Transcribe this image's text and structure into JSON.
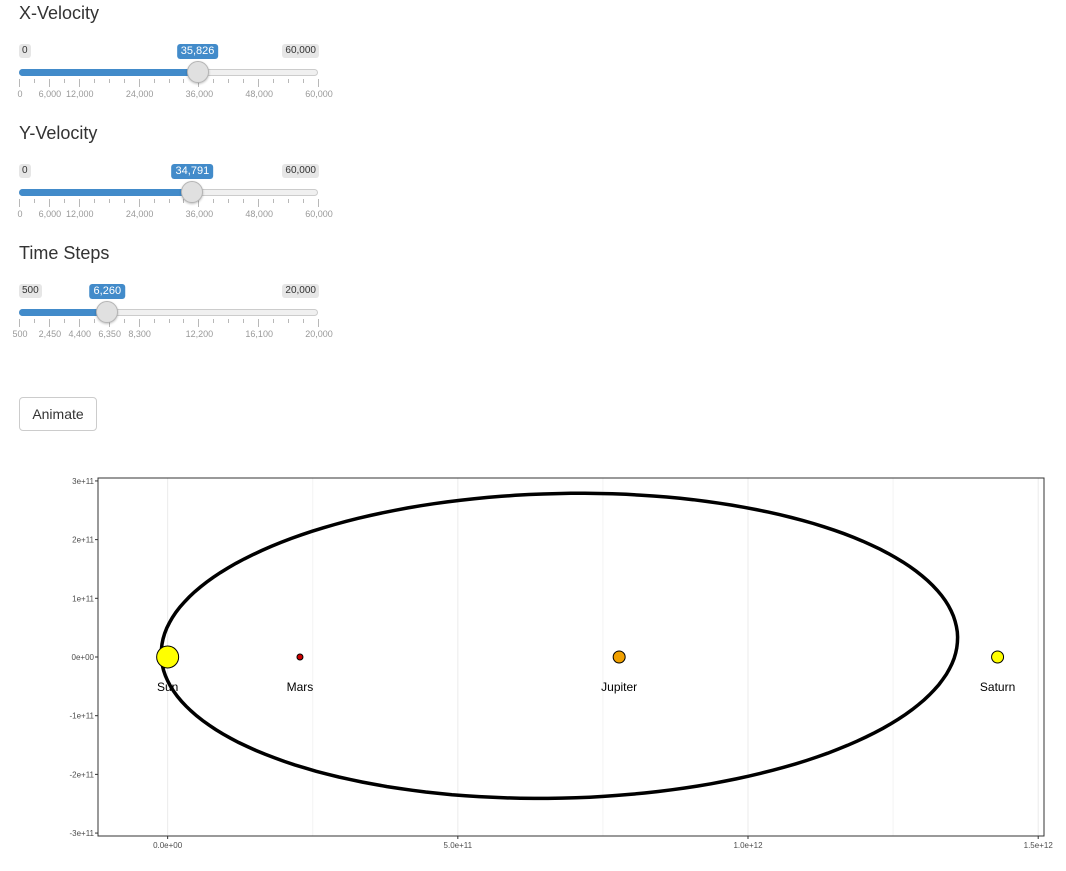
{
  "sliders": [
    {
      "id": "xvel",
      "label": "X-Velocity",
      "min": 0,
      "max": 60000,
      "value": 35826,
      "min_label": "0",
      "max_label": "60,000",
      "value_label": "35,826",
      "major_ticks": [
        0,
        6000,
        12000,
        24000,
        36000,
        48000,
        60000
      ],
      "tick_labels": [
        "0",
        "6,000",
        "12,000",
        "24,000",
        "36,000",
        "48,000",
        "60,000"
      ],
      "minor_step": 3000
    },
    {
      "id": "yvel",
      "label": "Y-Velocity",
      "min": 0,
      "max": 60000,
      "value": 34791,
      "min_label": "0",
      "max_label": "60,000",
      "value_label": "34,791",
      "major_ticks": [
        0,
        6000,
        12000,
        24000,
        36000,
        48000,
        60000
      ],
      "tick_labels": [
        "0",
        "6,000",
        "12,000",
        "24,000",
        "36,000",
        "48,000",
        "60,000"
      ],
      "minor_step": 3000
    },
    {
      "id": "tsteps",
      "label": "Time Steps",
      "min": 500,
      "max": 20000,
      "value": 6260,
      "min_label": "500",
      "max_label": "20,000",
      "value_label": "6,260",
      "major_ticks": [
        500,
        2450,
        4400,
        6350,
        8300,
        12200,
        16100,
        20000
      ],
      "tick_labels": [
        "500",
        "2,450",
        "4,400",
        "6,350",
        "8,300",
        "12,200",
        "16,100",
        "20,000"
      ],
      "minor_step": 975
    }
  ],
  "animate_button": {
    "label": "Animate"
  },
  "chart_data": {
    "type": "scatter",
    "xlim": [
      -120000000000.0,
      1510000000000.0
    ],
    "ylim": [
      -305000000000.0,
      305000000000.0
    ],
    "x_ticks": [
      0,
      500000000000.0,
      1000000000000.0,
      1500000000000.0
    ],
    "x_tick_labels": [
      "0.0e+00",
      "5.0e+11",
      "1.0e+12",
      "1.5e+12"
    ],
    "y_ticks": [
      300000000000.0,
      200000000000.0,
      100000000000.0,
      0,
      -100000000000.0,
      -200000000000.0,
      -300000000000.0
    ],
    "y_tick_labels": [
      "3e+11",
      "2e+11",
      "1e+11",
      "0e+00",
      "-1e+11",
      "-2e+11",
      "-3e+11"
    ],
    "grid": true,
    "bodies": [
      {
        "name": "Sun",
        "x": 0,
        "y": 0,
        "size": "large",
        "color": "#ffff00"
      },
      {
        "name": "Mars",
        "x": 228000000000.0,
        "y": 0,
        "size": "small",
        "color": "#cc0000"
      },
      {
        "name": "Jupiter",
        "x": 778000000000.0,
        "y": 0,
        "size": "medium",
        "color": "#f0a000"
      },
      {
        "name": "Saturn",
        "x": 1430000000000.0,
        "y": 0,
        "size": "medium",
        "color": "#ffff00"
      }
    ],
    "orbit": {
      "shape": "ellipse",
      "center_x": 675000000000.0,
      "center_y": 19000000000.0,
      "semi_major": 685000000000.0,
      "semi_minor": 260000000000.0,
      "rotation_deg": -1.6,
      "color": "#000000"
    }
  }
}
